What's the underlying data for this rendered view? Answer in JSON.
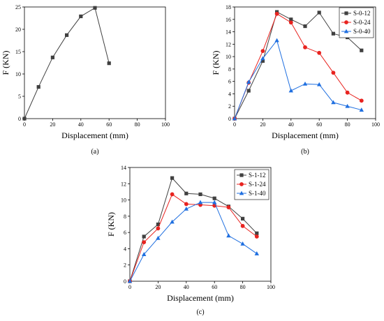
{
  "chart_data": [
    {
      "type": "line",
      "caption": "(a)",
      "xlabel": "Displacement (mm)",
      "ylabel": "F (KN)",
      "xlim": [
        0,
        100
      ],
      "ylim": [
        0,
        25
      ],
      "xticks": [
        0,
        20,
        40,
        60,
        80,
        100
      ],
      "yticks": [
        0,
        5,
        10,
        15,
        20,
        25
      ],
      "legend": null,
      "series": [
        {
          "name": "",
          "color": "#404040",
          "marker": "square",
          "x": [
            0,
            10,
            20,
            30,
            40,
            50,
            60
          ],
          "y": [
            0,
            7.1,
            13.7,
            18.7,
            22.9,
            24.8,
            12.4
          ]
        }
      ]
    },
    {
      "type": "line",
      "caption": "(b)",
      "xlabel": "Displacement (mm)",
      "ylabel": "F (KN)",
      "xlim": [
        0,
        100
      ],
      "ylim": [
        0,
        18
      ],
      "xticks": [
        0,
        20,
        40,
        60,
        80,
        100
      ],
      "yticks": [
        0,
        2,
        4,
        6,
        8,
        10,
        12,
        14,
        16,
        18
      ],
      "legend": "top-right",
      "series": [
        {
          "name": "S-0-12",
          "color": "#404040",
          "marker": "square",
          "x": [
            0,
            10,
            20,
            30,
            40,
            50,
            60,
            70,
            80,
            90
          ],
          "y": [
            0,
            4.5,
            9.3,
            17.2,
            16.0,
            14.9,
            17.1,
            13.7,
            13.1,
            11.0
          ]
        },
        {
          "name": "S-0-24",
          "color": "#e8231f",
          "marker": "circle",
          "x": [
            0,
            10,
            20,
            30,
            40,
            50,
            60,
            70,
            80,
            90
          ],
          "y": [
            0,
            5.8,
            10.9,
            16.9,
            15.5,
            11.5,
            10.6,
            7.4,
            4.2,
            2.9
          ]
        },
        {
          "name": "S-0-40",
          "color": "#1f6fe0",
          "marker": "triangle",
          "x": [
            0,
            10,
            20,
            30,
            40,
            50,
            60,
            70,
            80,
            90
          ],
          "y": [
            0,
            5.9,
            9.7,
            12.6,
            4.5,
            5.6,
            5.5,
            2.6,
            2.0,
            1.4
          ]
        }
      ]
    },
    {
      "type": "line",
      "caption": "(c)",
      "xlabel": "Displacement (mm)",
      "ylabel": "F (KN)",
      "xlim": [
        0,
        100
      ],
      "ylim": [
        0,
        14
      ],
      "xticks": [
        0,
        20,
        40,
        60,
        80,
        100
      ],
      "yticks": [
        0,
        2,
        4,
        6,
        8,
        10,
        12,
        14
      ],
      "legend": "top-right",
      "series": [
        {
          "name": "S-1-12",
          "color": "#404040",
          "marker": "square",
          "x": [
            0,
            10,
            20,
            30,
            40,
            50,
            60,
            70,
            80,
            90
          ],
          "y": [
            0,
            5.5,
            7.0,
            12.7,
            10.8,
            10.7,
            10.2,
            9.2,
            7.7,
            5.9
          ]
        },
        {
          "name": "S-1-24",
          "color": "#e8231f",
          "marker": "circle",
          "x": [
            0,
            10,
            20,
            30,
            40,
            50,
            60,
            70,
            80,
            90
          ],
          "y": [
            0,
            4.8,
            6.5,
            10.7,
            9.5,
            9.4,
            9.3,
            9.1,
            6.8,
            5.5
          ]
        },
        {
          "name": "S-1-40",
          "color": "#1f6fe0",
          "marker": "triangle",
          "x": [
            0,
            10,
            20,
            30,
            40,
            50,
            60,
            70,
            80,
            90
          ],
          "y": [
            0,
            3.3,
            5.3,
            7.3,
            8.9,
            9.7,
            9.7,
            5.6,
            4.6,
            3.4
          ]
        }
      ]
    }
  ]
}
